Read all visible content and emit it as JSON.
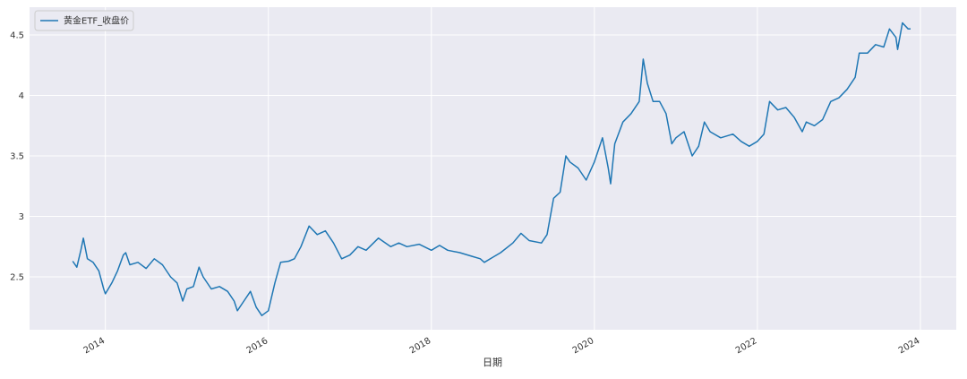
{
  "chart_data": {
    "type": "line",
    "xlabel": "日期",
    "legend": "upper left",
    "grid": true,
    "series": [
      {
        "name": "黄金ETF_收盘价",
        "color": "#1f77b4",
        "x": [
          2013.6,
          2013.65,
          2013.7,
          2013.73,
          2013.78,
          2013.85,
          2013.92,
          2013.98,
          2014.0,
          2014.08,
          2014.15,
          2014.22,
          2014.25,
          2014.3,
          2014.4,
          2014.5,
          2014.6,
          2014.7,
          2014.8,
          2014.88,
          2014.95,
          2015.0,
          2015.08,
          2015.15,
          2015.2,
          2015.3,
          2015.4,
          2015.5,
          2015.58,
          2015.62,
          2015.7,
          2015.78,
          2015.85,
          2015.92,
          2016.0,
          2016.08,
          2016.15,
          2016.25,
          2016.32,
          2016.4,
          2016.5,
          2016.6,
          2016.7,
          2016.8,
          2016.9,
          2017.0,
          2017.1,
          2017.2,
          2017.35,
          2017.5,
          2017.6,
          2017.7,
          2017.85,
          2018.0,
          2018.1,
          2018.2,
          2018.35,
          2018.5,
          2018.6,
          2018.65,
          2018.75,
          2018.85,
          2019.0,
          2019.1,
          2019.2,
          2019.35,
          2019.42,
          2019.5,
          2019.58,
          2019.65,
          2019.7,
          2019.8,
          2019.9,
          2020.0,
          2020.1,
          2020.17,
          2020.2,
          2020.25,
          2020.35,
          2020.45,
          2020.55,
          2020.6,
          2020.65,
          2020.72,
          2020.8,
          2020.88,
          2020.95,
          2021.0,
          2021.1,
          2021.2,
          2021.28,
          2021.35,
          2021.42,
          2021.55,
          2021.7,
          2021.8,
          2021.9,
          2022.0,
          2022.08,
          2022.15,
          2022.25,
          2022.35,
          2022.45,
          2022.55,
          2022.6,
          2022.7,
          2022.8,
          2022.9,
          2023.0,
          2023.1,
          2023.2,
          2023.25,
          2023.35,
          2023.45,
          2023.55,
          2023.62,
          2023.7,
          2023.72,
          2023.78,
          2023.85,
          2023.88
        ],
        "values": [
          2.63,
          2.58,
          2.72,
          2.82,
          2.65,
          2.62,
          2.55,
          2.4,
          2.36,
          2.45,
          2.55,
          2.68,
          2.7,
          2.6,
          2.62,
          2.57,
          2.65,
          2.6,
          2.5,
          2.45,
          2.3,
          2.4,
          2.42,
          2.58,
          2.5,
          2.4,
          2.42,
          2.38,
          2.3,
          2.22,
          2.3,
          2.38,
          2.25,
          2.18,
          2.22,
          2.45,
          2.62,
          2.63,
          2.65,
          2.75,
          2.92,
          2.85,
          2.88,
          2.78,
          2.65,
          2.68,
          2.75,
          2.72,
          2.82,
          2.75,
          2.78,
          2.75,
          2.77,
          2.72,
          2.76,
          2.72,
          2.7,
          2.67,
          2.65,
          2.62,
          2.66,
          2.7,
          2.78,
          2.86,
          2.8,
          2.78,
          2.85,
          3.15,
          3.2,
          3.5,
          3.45,
          3.4,
          3.3,
          3.45,
          3.65,
          3.4,
          3.27,
          3.6,
          3.78,
          3.85,
          3.95,
          4.3,
          4.1,
          3.95,
          3.95,
          3.85,
          3.6,
          3.65,
          3.7,
          3.5,
          3.58,
          3.78,
          3.7,
          3.65,
          3.68,
          3.62,
          3.58,
          3.62,
          3.68,
          3.95,
          3.88,
          3.9,
          3.82,
          3.7,
          3.78,
          3.75,
          3.8,
          3.95,
          3.98,
          4.05,
          4.15,
          4.35,
          4.35,
          4.42,
          4.4,
          4.55,
          4.48,
          4.38,
          4.6,
          4.55,
          4.55
        ]
      }
    ],
    "xlim": [
      2013.07,
      2024.44
    ],
    "xticks": [
      2014,
      2016,
      2018,
      2020,
      2022,
      2024
    ],
    "ylim": [
      2.063,
      4.73
    ],
    "yticks": [
      2.5,
      3.0,
      3.5,
      4.0,
      4.5
    ]
  }
}
